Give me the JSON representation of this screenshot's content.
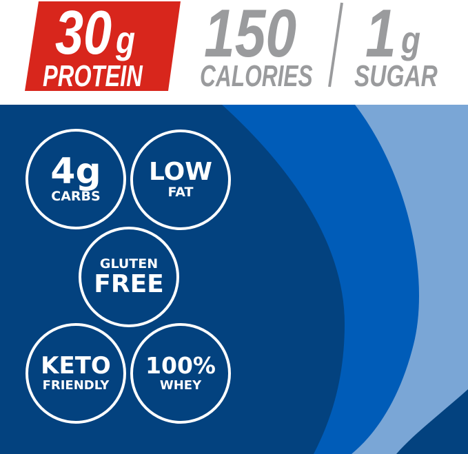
{
  "header": {
    "protein": {
      "value": "30",
      "unit": "g",
      "label": "PROTEIN"
    },
    "calories": {
      "value": "150",
      "label": "CALORIES"
    },
    "sugar": {
      "value": "1",
      "unit": "g",
      "label": "SUGAR"
    }
  },
  "badges": [
    {
      "big": "4g",
      "small": "CARBS"
    },
    {
      "big": "LOW",
      "small": "FAT"
    },
    {
      "small": "GLUTEN",
      "big": "FREE"
    },
    {
      "big": "KETO",
      "small": "FRIENDLY"
    },
    {
      "big": "100%",
      "small": "WHEY"
    }
  ],
  "colors": {
    "red": "#d8261c",
    "gray": "#9a9b9d",
    "navy": "#03427f",
    "blue": "#005cb8",
    "light_blue": "#7aa6d6",
    "white": "#ffffff"
  }
}
